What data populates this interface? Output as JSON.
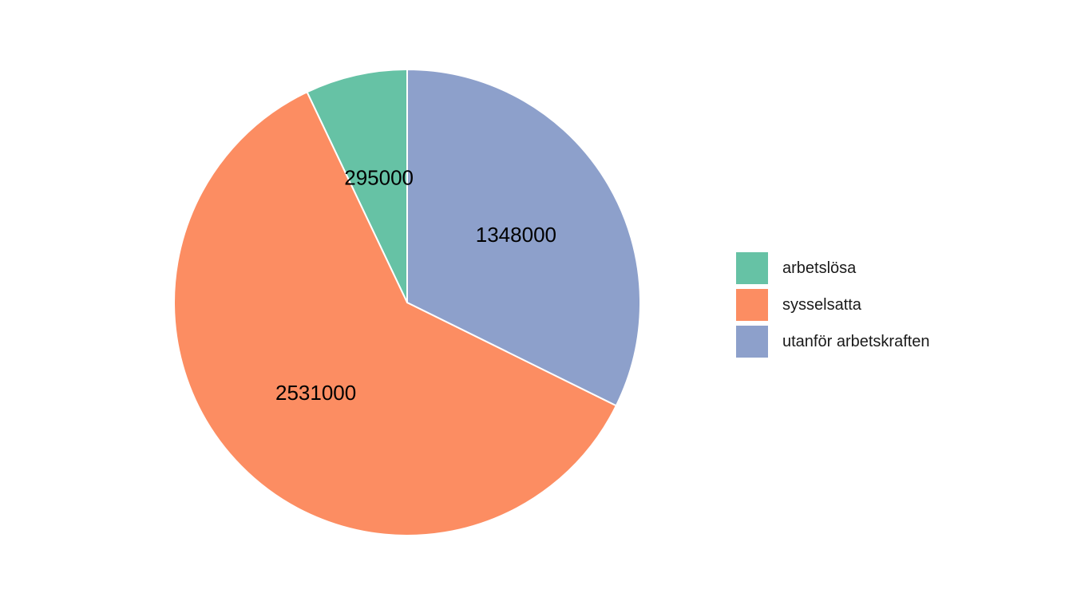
{
  "chart_data": {
    "type": "pie",
    "categories": [
      "arbetslösa",
      "sysselsatta",
      "utanför arbetskraften"
    ],
    "values": [
      295000,
      2531000,
      1348000
    ],
    "labels": [
      "295000",
      "2531000",
      "1348000"
    ],
    "colors": [
      "#66c2a5",
      "#fc8d62",
      "#8da0cb"
    ],
    "start": "12 o'clock",
    "direction": "counterclockwise",
    "legend_position": "right",
    "title": ""
  }
}
